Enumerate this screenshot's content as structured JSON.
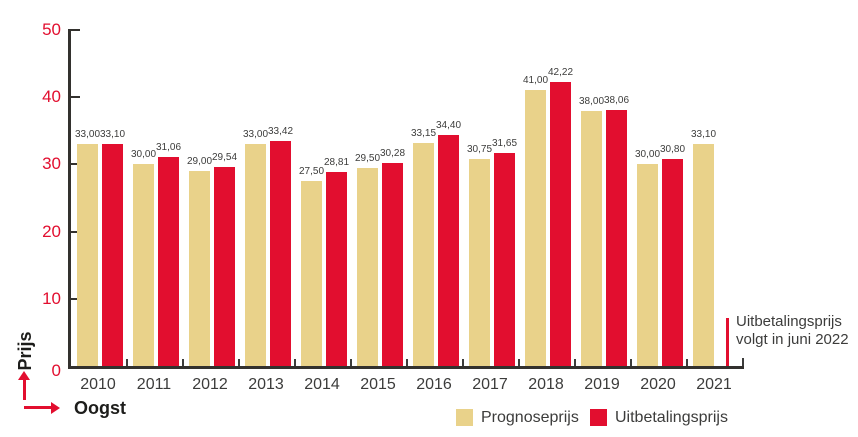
{
  "chart_data": {
    "type": "bar",
    "title": "",
    "categories": [
      "2010",
      "2011",
      "2012",
      "2013",
      "2014",
      "2015",
      "2016",
      "2017",
      "2018",
      "2019",
      "2020",
      "2021"
    ],
    "series": [
      {
        "name": "Prognoseprijs",
        "color": "#E9D28A",
        "values": [
          33.0,
          30.0,
          29.0,
          33.0,
          27.5,
          29.5,
          33.15,
          30.75,
          41.0,
          38.0,
          30.0,
          33.1
        ],
        "labels": [
          "33,00",
          "30,00",
          "29,00",
          "33,00",
          "27,50",
          "29,50",
          "33,15",
          "30,75",
          "41,00",
          "38,00",
          "30,00",
          "33,10"
        ]
      },
      {
        "name": "Uitbetalingsprijs",
        "color": "#E20E2F",
        "values": [
          33.1,
          31.06,
          29.54,
          33.42,
          28.81,
          30.28,
          34.4,
          31.65,
          42.22,
          38.06,
          30.8,
          null
        ],
        "labels": [
          "33,10",
          "31,06",
          "29,54",
          "33,42",
          "28,81",
          "30,28",
          "34,40",
          "31,65",
          "42,22",
          "38,06",
          "30,80",
          null
        ]
      }
    ],
    "xlabel": "Oogst",
    "ylabel": "Prijs",
    "ylim": [
      0,
      50
    ],
    "yticks": [
      0,
      10,
      20,
      30,
      40,
      50
    ],
    "ytick_labels": [
      "0",
      "10",
      "20",
      "30",
      "40",
      "50"
    ],
    "grid": false,
    "legend_position": "bottom",
    "annotation": {
      "line1": "Uitbetalingsprijs",
      "line2": "volgt in juni 2022"
    },
    "colors": {
      "axis": "#33312E",
      "text": "#3C3C3B",
      "red": "#E20E2F",
      "tan": "#E9D28A"
    }
  }
}
